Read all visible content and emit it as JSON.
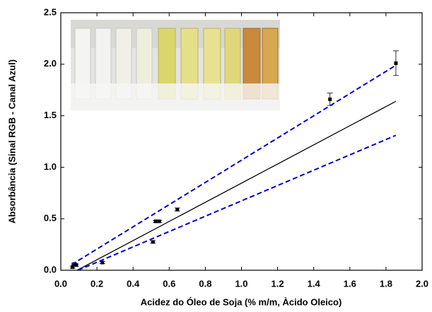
{
  "chart_data": {
    "type": "scatter",
    "x_label": "Acidez do Óleo de Soja (% m/m, Àcido Oleico)",
    "y_label": "Absorbância (Sinal RGB - Canal Azul)",
    "xlim": [
      0,
      2
    ],
    "ylim": [
      0,
      2.5
    ],
    "xticks": [
      {
        "value": 0,
        "label": "0.0"
      },
      0.2,
      0.4,
      0.6,
      0.8,
      {
        "value": 1,
        "label": "1.0"
      },
      1.2,
      1.4,
      1.6,
      1.8,
      {
        "value": 2,
        "label": "2.0"
      }
    ],
    "yticks": [
      {
        "value": 0,
        "label": "0.0"
      },
      0.5,
      {
        "value": 1,
        "label": "1.0"
      },
      1.5,
      {
        "value": 2,
        "label": "2.0"
      },
      2.5
    ],
    "series": [
      {
        "type": "scatter",
        "color": "#000000",
        "x": [
          0.065,
          0.075,
          0.085,
          0.23,
          0.51,
          0.525,
          0.545,
          0.645,
          1.49,
          1.855
        ],
        "values": [
          0.03,
          0.06,
          0.05,
          0.075,
          0.275,
          0.475,
          0.475,
          0.59,
          1.66,
          2.01
        ],
        "errors": [
          0.01,
          0.01,
          0.01,
          0.01,
          0.01,
          0.01,
          0.01,
          0.015,
          0.06,
          0.12
        ]
      },
      {
        "type": "line",
        "color": "#000000",
        "dashed": false,
        "x": [
          0.09,
          1.855
        ],
        "values": [
          0,
          1.64
        ]
      },
      {
        "type": "line",
        "color": "#0000cc",
        "dashed": true,
        "x": [
          0.06,
          1.855
        ],
        "values": [
          0.055,
          1.99
        ]
      },
      {
        "type": "line",
        "color": "#0000cc",
        "dashed": true,
        "x": [
          0.095,
          1.855
        ],
        "values": [
          0,
          1.31
        ]
      }
    ]
  }
}
